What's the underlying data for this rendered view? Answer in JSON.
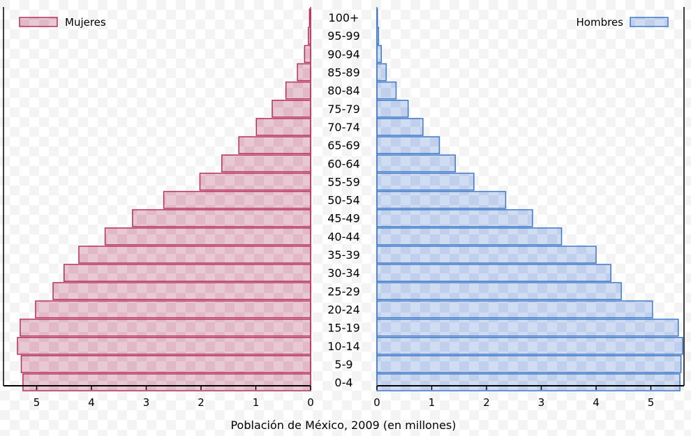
{
  "chart_data": {
    "type": "bar",
    "orientation": "horizontal",
    "layout": "population-pyramid",
    "title": "",
    "xlabel": "Población de México, 2009 (en millones)",
    "categories": [
      "100+",
      "95-99",
      "90-94",
      "85-89",
      "80-84",
      "75-79",
      "70-74",
      "65-69",
      "60-64",
      "55-59",
      "50-54",
      "45-49",
      "40-44",
      "35-39",
      "30-34",
      "25-29",
      "20-24",
      "15-19",
      "10-14",
      "5-9",
      "0-4"
    ],
    "series": [
      {
        "name": "Mujeres",
        "side": "left",
        "color": "#b5305f",
        "fill": "#e3c1cd",
        "values": [
          0.02,
          0.04,
          0.11,
          0.24,
          0.45,
          0.7,
          0.99,
          1.31,
          1.62,
          2.02,
          2.68,
          3.25,
          3.75,
          4.23,
          4.5,
          4.7,
          5.02,
          5.3,
          5.35,
          5.28,
          5.25
        ]
      },
      {
        "name": "Hombres",
        "side": "right",
        "color": "#3e78c9",
        "fill": "#c6d6ef",
        "values": [
          0.01,
          0.03,
          0.08,
          0.17,
          0.35,
          0.57,
          0.84,
          1.14,
          1.43,
          1.77,
          2.35,
          2.84,
          3.37,
          4.0,
          4.27,
          4.46,
          5.03,
          5.5,
          5.58,
          5.55,
          5.53
        ]
      }
    ],
    "xticks_left": [
      5,
      4,
      3,
      2,
      1,
      0
    ],
    "xticks_right": [
      0,
      1,
      2,
      3,
      4,
      5
    ],
    "xlim": [
      0,
      5.6
    ],
    "legend": [
      {
        "label": "Mujeres",
        "placement": "top-left"
      },
      {
        "label": "Hombres",
        "placement": "top-right"
      }
    ],
    "grid": false
  }
}
